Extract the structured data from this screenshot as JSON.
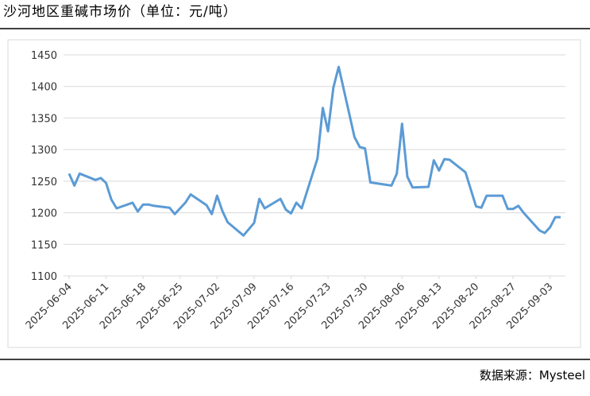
{
  "chart_data": {
    "type": "line",
    "title": "沙河地区重碱市场价（单位：元/吨）",
    "source": "数据来源：Mysteel",
    "x": [
      "2025-06-04",
      "2025-06-05",
      "2025-06-06",
      "2025-06-09",
      "2025-06-10",
      "2025-06-11",
      "2025-06-12",
      "2025-06-13",
      "2025-06-16",
      "2025-06-17",
      "2025-06-18",
      "2025-06-19",
      "2025-06-20",
      "2025-06-23",
      "2025-06-24",
      "2025-06-26",
      "2025-06-27",
      "2025-06-30",
      "2025-07-01",
      "2025-07-02",
      "2025-07-03",
      "2025-07-04",
      "2025-07-07",
      "2025-07-09",
      "2025-07-10",
      "2025-07-11",
      "2025-07-14",
      "2025-07-15",
      "2025-07-16",
      "2025-07-17",
      "2025-07-18",
      "2025-07-21",
      "2025-07-22",
      "2025-07-23",
      "2025-07-24",
      "2025-07-25",
      "2025-07-28",
      "2025-07-29",
      "2025-07-30",
      "2025-07-31",
      "2025-08-04",
      "2025-08-05",
      "2025-08-06",
      "2025-08-07",
      "2025-08-08",
      "2025-08-11",
      "2025-08-12",
      "2025-08-13",
      "2025-08-14",
      "2025-08-15",
      "2025-08-18",
      "2025-08-20",
      "2025-08-21",
      "2025-08-22",
      "2025-08-25",
      "2025-08-26",
      "2025-08-27",
      "2025-08-28",
      "2025-08-29",
      "2025-09-01",
      "2025-09-02",
      "2025-09-03",
      "2025-09-04",
      "2025-09-05"
    ],
    "series": [
      {
        "color": "#5b9bd5",
        "values": [
          1262,
          1243,
          1262,
          1252,
          1255,
          1247,
          1221,
          1207,
          1216,
          1202,
          1213,
          1213,
          1211,
          1208,
          1198,
          1216,
          1229,
          1212,
          1198,
          1227,
          1203,
          1185,
          1164,
          1184,
          1222,
          1207,
          1222,
          1205,
          1199,
          1216,
          1207,
          1286,
          1366,
          1329,
          1398,
          1431,
          1320,
          1304,
          1302,
          1248,
          1243,
          1262,
          1341,
          1257,
          1240,
          1241,
          1283,
          1267,
          1285,
          1284,
          1264,
          1210,
          1208,
          1227,
          1227,
          1206,
          1206,
          1211,
          1200,
          1172,
          1168,
          1177,
          1193,
          1193
        ]
      }
    ],
    "xlim": [
      "2025-06-04",
      "2025-09-05"
    ],
    "xticks": [
      "2025-06-04",
      "2025-06-11",
      "2025-06-18",
      "2025-06-25",
      "2025-07-02",
      "2025-07-09",
      "2025-07-16",
      "2025-07-23",
      "2025-07-30",
      "2025-08-06",
      "2025-08-13",
      "2025-08-20",
      "2025-08-27",
      "2025-09-03"
    ],
    "ylim": [
      1100,
      1450
    ],
    "yticks": [
      1100,
      1150,
      1200,
      1250,
      1300,
      1350,
      1400,
      1450
    ],
    "grid": true
  }
}
